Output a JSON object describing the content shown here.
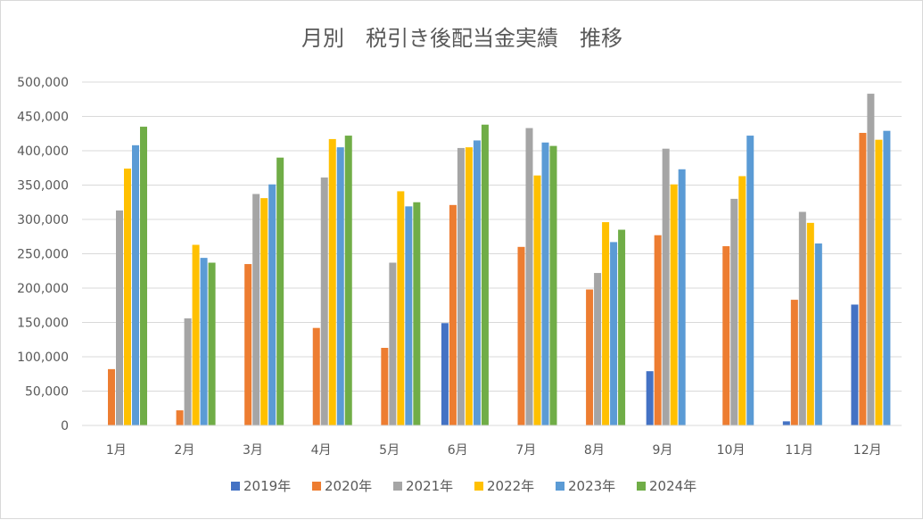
{
  "chart_data": {
    "type": "bar",
    "title": "月別　税引き後配当金実績　推移",
    "xlabel": "",
    "ylabel": "",
    "ylim": [
      0,
      500000
    ],
    "ytick_values": [
      0,
      50000,
      100000,
      150000,
      200000,
      250000,
      300000,
      350000,
      400000,
      450000,
      500000
    ],
    "ytick_labels": [
      "0",
      "50,000",
      "100,000",
      "150,000",
      "200,000",
      "250,000",
      "300,000",
      "350,000",
      "400,000",
      "450,000",
      "500,000"
    ],
    "grid": true,
    "legend_position": "bottom",
    "categories": [
      "1月",
      "2月",
      "3月",
      "4月",
      "5月",
      "6月",
      "7月",
      "8月",
      "9月",
      "10月",
      "11月",
      "12月"
    ],
    "series": [
      {
        "name": "2019年",
        "color": "#4472c4",
        "values": [
          0,
          0,
          0,
          0,
          0,
          149000,
          0,
          0,
          79000,
          0,
          6000,
          176000
        ]
      },
      {
        "name": "2020年",
        "color": "#ed7d31",
        "values": [
          82000,
          22000,
          235000,
          142000,
          113000,
          321000,
          260000,
          198000,
          277000,
          261000,
          183000,
          426000
        ]
      },
      {
        "name": "2021年",
        "color": "#a5a5a5",
        "values": [
          313000,
          156000,
          337000,
          361000,
          237000,
          404000,
          433000,
          222000,
          403000,
          330000,
          311000,
          483000
        ]
      },
      {
        "name": "2022年",
        "color": "#ffc000",
        "values": [
          374000,
          263000,
          331000,
          417000,
          341000,
          405000,
          364000,
          296000,
          351000,
          363000,
          295000,
          416000
        ]
      },
      {
        "name": "2023年",
        "color": "#5b9bd5",
        "values": [
          408000,
          244000,
          351000,
          405000,
          319000,
          415000,
          412000,
          267000,
          373000,
          422000,
          265000,
          429000
        ]
      },
      {
        "name": "2024年",
        "color": "#70ad47",
        "values": [
          435000,
          237000,
          390000,
          422000,
          325000,
          438000,
          407000,
          285000,
          null,
          null,
          null,
          null
        ]
      }
    ]
  }
}
